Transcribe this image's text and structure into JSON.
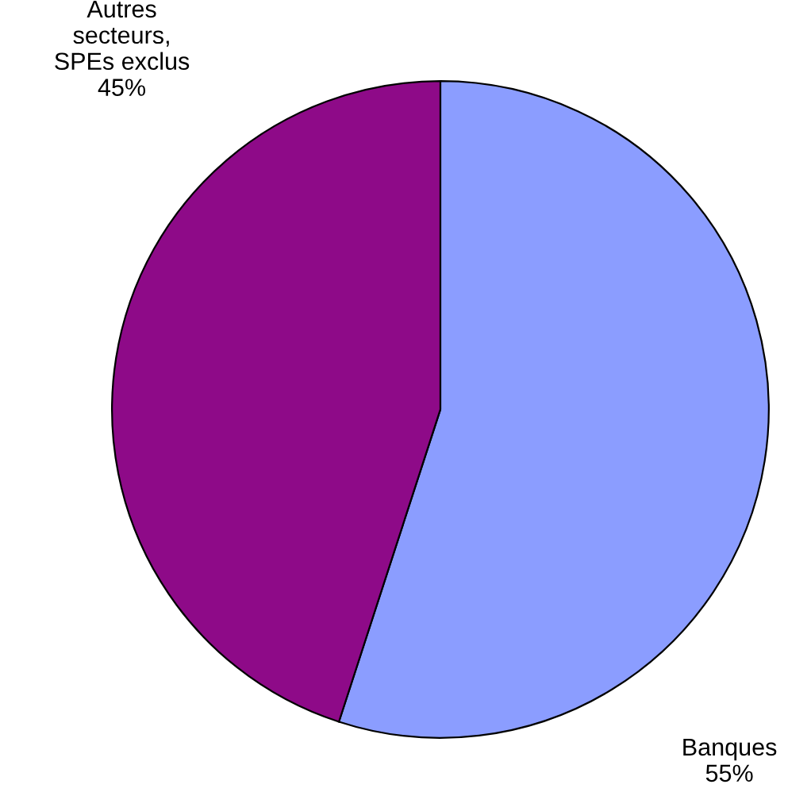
{
  "chart_data": {
    "type": "pie",
    "categories": [
      "Banques",
      "Autres\nsecteurs,\nSPEs exclus"
    ],
    "values": [
      55,
      45
    ],
    "value_labels": [
      "55%",
      "45%"
    ],
    "colors": [
      "#8b9dff",
      "#8e0a88"
    ],
    "legend": false
  }
}
